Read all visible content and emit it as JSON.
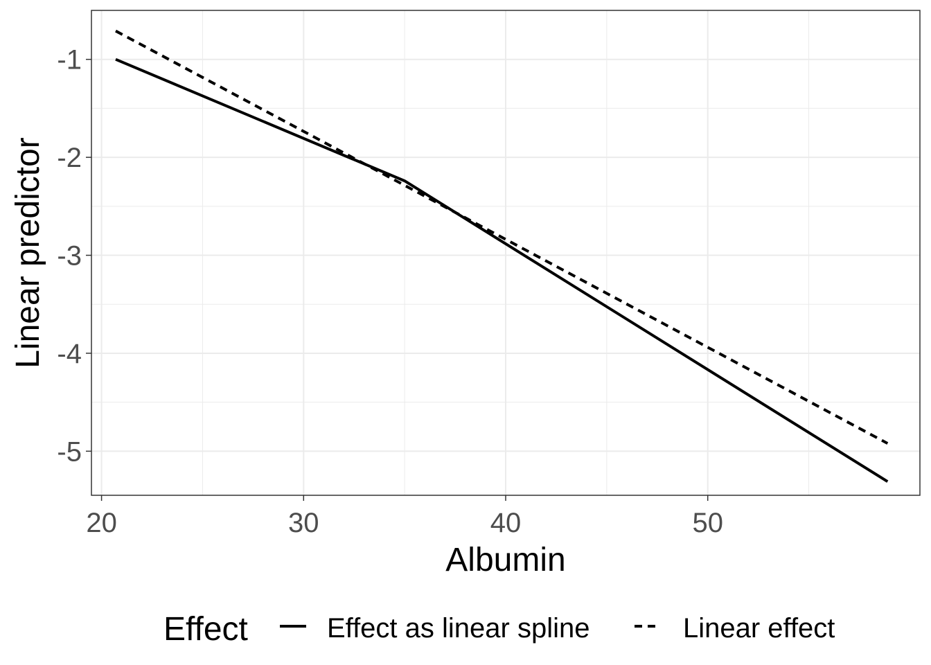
{
  "chart_data": {
    "type": "line",
    "xlabel": "Albumin",
    "ylabel": "Linear predictor",
    "xlim": [
      19.5,
      60.5
    ],
    "ylim": [
      -5.45,
      -0.5
    ],
    "x_ticks": [
      20,
      30,
      40,
      50
    ],
    "x_tick_labels": [
      "20",
      "30",
      "40",
      "50"
    ],
    "y_ticks": [
      -1,
      -2,
      -3,
      -4,
      -5
    ],
    "y_tick_labels": [
      "-1",
      "-2",
      "-3",
      "-4",
      "-5"
    ],
    "grid": true,
    "legend": {
      "title": "Effect",
      "position": "bottom"
    },
    "series": [
      {
        "name": "Effect as linear spline",
        "line_style": "solid",
        "x": [
          20.7,
          35,
          58.9
        ],
        "y": [
          -1.0,
          -2.24,
          -5.31
        ]
      },
      {
        "name": "Linear effect",
        "line_style": "dashed",
        "x": [
          20.7,
          58.9
        ],
        "y": [
          -0.71,
          -4.92
        ]
      }
    ],
    "colors": {
      "line": "#000000",
      "grid": "#ebebeb",
      "panel_border": "#333333",
      "tick_label": "#4d4d4d"
    }
  }
}
